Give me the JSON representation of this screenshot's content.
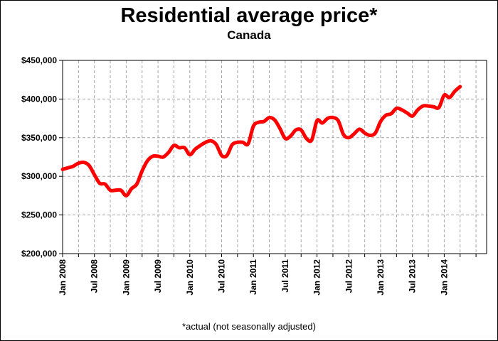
{
  "chart_data": {
    "type": "line",
    "title": "Residential average price*",
    "subtitle": "Canada",
    "footnote": "*actual (not seasonally adjusted)",
    "ylim": [
      200000,
      450000
    ],
    "y_ticks": [
      "$200,000",
      "$250,000",
      "$300,000",
      "$350,000",
      "$400,000",
      "$450,000"
    ],
    "y_tick_values": [
      200000,
      250000,
      300000,
      350000,
      400000,
      450000
    ],
    "x_tick_labels": [
      "Jan 2008",
      "Jul 2008",
      "Jan 2009",
      "Jul 2009",
      "Jan 2010",
      "Jul 2010",
      "Jan 2011",
      "Jul 2011",
      "Jan 2012",
      "Jul 2012",
      "Jan 2013",
      "Jul 2013",
      "Jan 2014"
    ],
    "x_tick_months": [
      0,
      6,
      12,
      18,
      24,
      30,
      36,
      42,
      48,
      54,
      60,
      66,
      72
    ],
    "x_range_months": [
      0,
      80
    ],
    "grid": true,
    "line_color": "#ff0000",
    "series": [
      {
        "x_start": "Jan 2008",
        "values": [
          309000,
          311000,
          313000,
          317000,
          318000,
          314000,
          302000,
          291000,
          290000,
          282000,
          282000,
          282000,
          275000,
          284000,
          290000,
          307000,
          320000,
          326000,
          326000,
          325000,
          331000,
          340000,
          337000,
          337000,
          328000,
          335000,
          340000,
          344000,
          346000,
          341000,
          327000,
          327000,
          341000,
          344000,
          344000,
          342000,
          365000,
          370000,
          371000,
          376000,
          373000,
          362000,
          349000,
          352000,
          360000,
          360000,
          349000,
          347000,
          372000,
          369000,
          375000,
          376000,
          372000,
          354000,
          350000,
          355000,
          361000,
          356000,
          353000,
          356000,
          371000,
          379000,
          381000,
          388000,
          386000,
          382000,
          378000,
          386000,
          391000,
          391000,
          390000,
          389000,
          405000,
          402000,
          410000,
          416000
        ]
      }
    ]
  }
}
